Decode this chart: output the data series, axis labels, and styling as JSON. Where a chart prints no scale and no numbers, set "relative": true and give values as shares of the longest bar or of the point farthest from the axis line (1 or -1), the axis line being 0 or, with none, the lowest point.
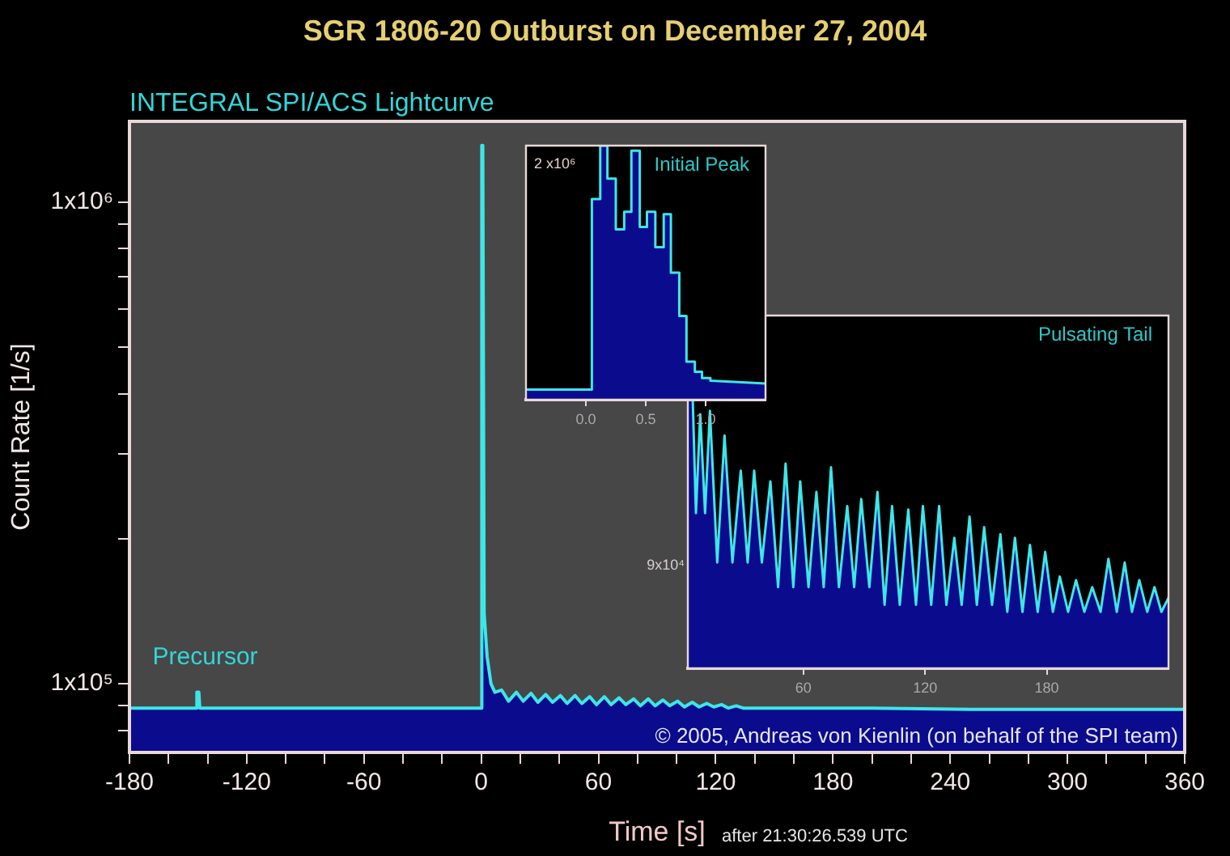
{
  "chart_data": [
    {
      "type": "area",
      "title": "SGR 1806-20 Outburst on December 27, 2004",
      "subtitle": "INTEGRAL SPI/ACS Lightcurve",
      "xlabel": "Time [s]",
      "ylabel": "Count Rate [1/s]",
      "x": [
        -180,
        -146,
        -145.5,
        -144.5,
        -144,
        -1,
        0,
        0.3,
        0.8,
        1.5,
        3,
        5,
        7,
        10.5,
        14,
        18,
        21.5,
        25.5,
        29,
        33,
        36.5,
        40.5,
        44,
        48,
        51.5,
        55.5,
        59,
        63,
        66.5,
        70.5,
        74,
        78,
        81.5,
        85.5,
        89,
        93,
        96.5,
        100.5,
        104,
        108,
        111.5,
        115.5,
        119,
        123,
        126.5,
        130.5,
        134,
        150,
        200,
        250,
        300,
        360
      ],
      "series": [
        {
          "color": "#3ee6e6",
          "values": [
            89000,
            89000,
            96000,
            96000,
            89000,
            89000,
            89000,
            1310000,
            1310000,
            140000,
            114000,
            100000,
            96000,
            97000,
            92000,
            96000,
            92000,
            95500,
            91500,
            95000,
            91500,
            94500,
            91000,
            94500,
            91000,
            94000,
            90500,
            94000,
            90500,
            93500,
            90500,
            93000,
            90000,
            93000,
            90000,
            92500,
            90000,
            92000,
            89500,
            91500,
            89500,
            91000,
            89500,
            90500,
            89000,
            90000,
            89000,
            89000,
            89000,
            88500,
            88500,
            88500
          ]
        }
      ],
      "xlim": [
        -180,
        360
      ],
      "xticks": [
        -180,
        {
          "value": -160,
          "label": null
        },
        {
          "value": -140,
          "label": null
        },
        -120,
        {
          "value": -100,
          "label": null
        },
        {
          "value": -80,
          "label": null
        },
        -60,
        {
          "value": -40,
          "label": null
        },
        {
          "value": -20,
          "label": null
        },
        0,
        {
          "value": 20,
          "label": null
        },
        {
          "value": 40,
          "label": null
        },
        60,
        {
          "value": 80,
          "label": null
        },
        {
          "value": 100,
          "label": null
        },
        120,
        {
          "value": 140,
          "label": null
        },
        {
          "value": 160,
          "label": null
        },
        180,
        {
          "value": 200,
          "label": null
        },
        {
          "value": 220,
          "label": null
        },
        240,
        {
          "value": 260,
          "label": null
        },
        {
          "value": 280,
          "label": null
        },
        300,
        {
          "value": 320,
          "label": null
        },
        {
          "value": 340,
          "label": null
        },
        360
      ],
      "log": true,
      "ylim": [
        72000,
        1470000
      ],
      "yticks": [
        {
          "value": 80000,
          "label": null
        },
        {
          "value": 90000,
          "label": null
        },
        {
          "value": 100000,
          "label": "1x10⁵"
        },
        {
          "value": 200000,
          "label": null
        },
        {
          "value": 300000,
          "label": null
        },
        {
          "value": 400000,
          "label": null
        },
        {
          "value": 500000,
          "label": null
        },
        {
          "value": 600000,
          "label": null
        },
        {
          "value": 700000,
          "label": null
        },
        {
          "value": 800000,
          "label": null
        },
        {
          "value": 900000,
          "label": null
        },
        {
          "value": 1000000,
          "label": "1x10⁶"
        }
      ],
      "grid": false,
      "legend": false,
      "annotations": [
        {
          "text": "Precursor",
          "x": -145,
          "y": 96000
        },
        "© 2005, Andreas von Kienlin (on behalf of the SPI team)",
        "after 21:30:26.539 UTC"
      ]
    },
    {
      "type": "area",
      "title": "Initial Peak",
      "relative": true,
      "x": [
        -0.5,
        0.05,
        0.05,
        0.12,
        0.12,
        0.18,
        0.18,
        0.25,
        0.25,
        0.32,
        0.32,
        0.38,
        0.38,
        0.45,
        0.45,
        0.51,
        0.51,
        0.58,
        0.58,
        0.65,
        0.65,
        0.71,
        0.71,
        0.78,
        0.78,
        0.84,
        0.84,
        0.91,
        0.91,
        0.97,
        0.97,
        1.04,
        1.04,
        1.5
      ],
      "series": [
        {
          "color": "#3ee6e6",
          "values": [
            0.04,
            0.04,
            0.79,
            0.79,
            1.0,
            1.0,
            0.87,
            0.87,
            0.67,
            0.67,
            0.74,
            0.74,
            0.98,
            0.98,
            0.68,
            0.68,
            0.74,
            0.74,
            0.6,
            0.6,
            0.73,
            0.73,
            0.5,
            0.5,
            0.33,
            0.33,
            0.15,
            0.15,
            0.11,
            0.11,
            0.085,
            0.085,
            0.075,
            0.064
          ]
        }
      ],
      "xlim": [
        -0.5,
        1.5
      ],
      "xticks": [
        {
          "value": 0,
          "label": "0.0"
        },
        {
          "value": 0.5,
          "label": "0.5"
        },
        {
          "value": 1,
          "label": "1.0"
        }
      ],
      "grid": false,
      "legend": false,
      "annotations": [
        "2 x10⁶"
      ]
    },
    {
      "type": "area",
      "title": "Pulsating Tail",
      "relative": true,
      "x": [
        3,
        5,
        7,
        9.1,
        11.5,
        13.9,
        17.5,
        21.1,
        25,
        29.1,
        32.5,
        35.7,
        39.5,
        43.7,
        47.5,
        51.2,
        55,
        58.4,
        62.5,
        66.4,
        70,
        73.6,
        77.5,
        81.6,
        85,
        88.5,
        92.5,
        96.5,
        100,
        103.7,
        107.5,
        111.7,
        115.5,
        118.9,
        123,
        126.9,
        130.5,
        134.4,
        138,
        141.9,
        145.5,
        149.1,
        153,
        157.1,
        160.5,
        164.3,
        168,
        171.7,
        175.5,
        179.2,
        183,
        186.4,
        190.5,
        194.4,
        198.5,
        202.4,
        206.5,
        210.4,
        214.5,
        218.4,
        222,
        225.6,
        229.5,
        233.1,
        236.5,
        240
      ],
      "series": [
        {
          "color": "#3ee6e6",
          "values": [
            1.0,
            0.85,
            0.44,
            0.72,
            0.44,
            0.73,
            0.3,
            0.66,
            0.3,
            0.56,
            0.3,
            0.56,
            0.3,
            0.53,
            0.23,
            0.58,
            0.23,
            0.53,
            0.23,
            0.5,
            0.23,
            0.57,
            0.23,
            0.46,
            0.23,
            0.48,
            0.23,
            0.5,
            0.18,
            0.46,
            0.18,
            0.45,
            0.18,
            0.46,
            0.18,
            0.46,
            0.18,
            0.37,
            0.18,
            0.43,
            0.18,
            0.4,
            0.18,
            0.38,
            0.16,
            0.37,
            0.16,
            0.35,
            0.16,
            0.33,
            0.16,
            0.26,
            0.16,
            0.25,
            0.16,
            0.23,
            0.16,
            0.31,
            0.16,
            0.3,
            0.16,
            0.25,
            0.16,
            0.23,
            0.16,
            0.2
          ]
        }
      ],
      "xlim": [
        3,
        240
      ],
      "xticks": [
        60,
        120,
        180
      ],
      "grid": false,
      "legend": false,
      "annotations": [
        "9x10⁴"
      ]
    }
  ]
}
